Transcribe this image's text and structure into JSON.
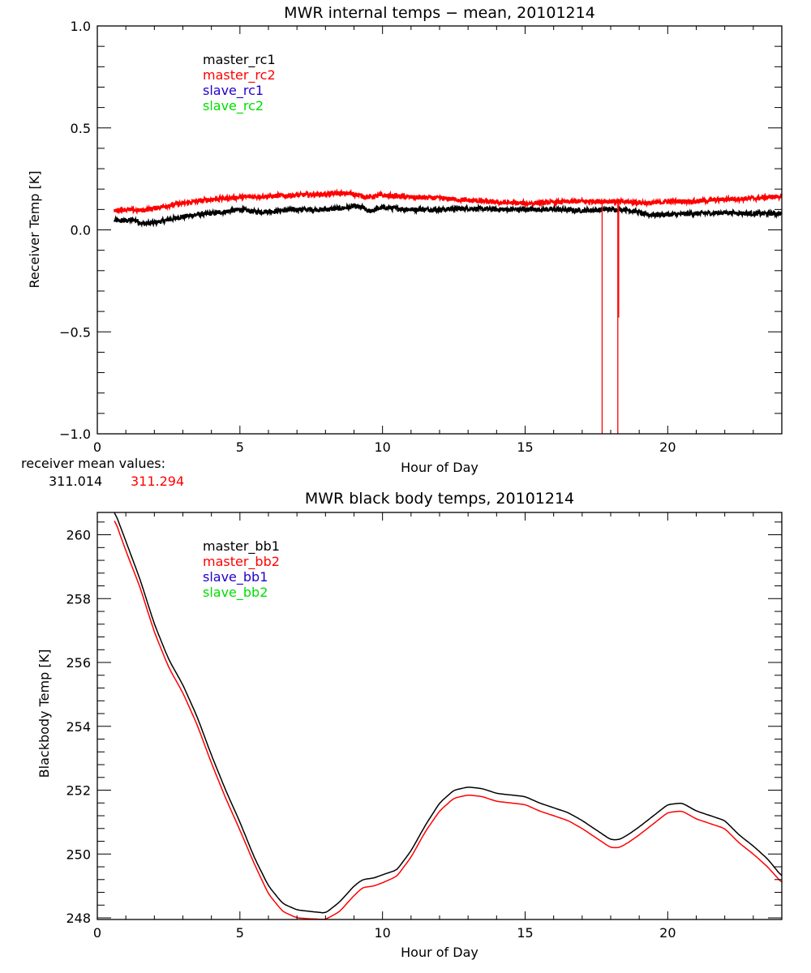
{
  "chart_data": [
    {
      "type": "line",
      "title": "MWR internal temps − mean, 20101214",
      "xlabel": "Hour of Day",
      "ylabel": "Receiver Temp [K]",
      "xlim": [
        0,
        24
      ],
      "ylim": [
        -1.0,
        1.0
      ],
      "xticks": [
        "0",
        "5",
        "10",
        "15",
        "20"
      ],
      "xtick_values": [
        0,
        5,
        10,
        15,
        20
      ],
      "yticks": [
        "−1.0",
        "−0.5",
        "0.0",
        "0.5",
        "1.0"
      ],
      "ytick_values": [
        -1.0,
        -0.5,
        0.0,
        0.5,
        1.0
      ],
      "grid": false,
      "legend_position": "top-left",
      "legend": [
        {
          "name": "master_rc1",
          "color": "#000000"
        },
        {
          "name": "master_rc2",
          "color": "#ff0000"
        },
        {
          "name": "slave_rc1",
          "color": "#2200cc"
        },
        {
          "name": "slave_rc2",
          "color": "#00dd00"
        }
      ],
      "series": [
        {
          "name": "master_rc1",
          "color": "#000000",
          "noisy": true,
          "x": [
            0.6,
            1.0,
            1.3,
            1.6,
            2.0,
            2.5,
            3.0,
            3.5,
            4.0,
            4.5,
            5.0,
            5.5,
            6.0,
            7.0,
            8.0,
            8.5,
            9.0,
            9.3,
            9.5,
            10.0,
            10.5,
            11.0,
            12.0,
            13.0,
            14.0,
            15.0,
            16.0,
            17.0,
            18.0,
            18.5,
            18.9,
            19.2,
            20.0,
            21.0,
            22.0,
            23.0,
            24.0
          ],
          "y": [
            0.045,
            0.045,
            0.05,
            0.03,
            0.035,
            0.05,
            0.065,
            0.075,
            0.08,
            0.09,
            0.1,
            0.09,
            0.09,
            0.1,
            0.1,
            0.105,
            0.115,
            0.11,
            0.09,
            0.11,
            0.105,
            0.1,
            0.1,
            0.105,
            0.1,
            0.1,
            0.1,
            0.095,
            0.1,
            0.1,
            0.09,
            0.075,
            0.075,
            0.08,
            0.085,
            0.08,
            0.08
          ]
        },
        {
          "name": "master_rc2",
          "color": "#ff0000",
          "noisy": true,
          "x": [
            0.6,
            1.0,
            1.5,
            2.0,
            2.5,
            3.0,
            3.5,
            4.0,
            4.5,
            5.0,
            6.0,
            7.0,
            8.0,
            8.5,
            9.0,
            9.5,
            10.0,
            11.0,
            12.0,
            13.0,
            14.0,
            15.0,
            16.0,
            17.0,
            18.0,
            19.0,
            19.5,
            20.0,
            21.0,
            22.0,
            23.0,
            24.0
          ],
          "y": [
            0.095,
            0.1,
            0.095,
            0.105,
            0.12,
            0.13,
            0.14,
            0.15,
            0.155,
            0.16,
            0.165,
            0.17,
            0.175,
            0.18,
            0.175,
            0.16,
            0.17,
            0.16,
            0.155,
            0.145,
            0.135,
            0.13,
            0.135,
            0.14,
            0.14,
            0.135,
            0.13,
            0.14,
            0.14,
            0.15,
            0.155,
            0.165
          ]
        }
      ],
      "spikes": [
        {
          "series": "master_rc2",
          "x": 17.7,
          "y_min": -1.0,
          "y_max": 0.14
        },
        {
          "series": "master_rc2",
          "x": 18.25,
          "y_min": -1.0,
          "y_max": 0.14
        },
        {
          "series": "master_rc2",
          "x": 18.28,
          "y_min": -0.43,
          "y_max": 0.14
        }
      ],
      "annotation": {
        "label": "receiver mean values:",
        "values": [
          {
            "text": "311.014",
            "color": "#000000"
          },
          {
            "text": "311.294",
            "color": "#ff0000"
          }
        ]
      }
    },
    {
      "type": "line",
      "title": "MWR black body temps, 20101214",
      "xlabel": "Hour of Day",
      "ylabel": "Blackbody Temp [K]",
      "xlim": [
        0,
        24
      ],
      "ylim": [
        247.95,
        260.7
      ],
      "xticks": [
        "0",
        "5",
        "10",
        "15",
        "20"
      ],
      "xtick_values": [
        0,
        5,
        10,
        15,
        20
      ],
      "yticks": [
        "248",
        "250",
        "252",
        "254",
        "256",
        "258",
        "260"
      ],
      "ytick_values": [
        248,
        250,
        252,
        254,
        256,
        258,
        260
      ],
      "grid": false,
      "legend_position": "top-left",
      "legend": [
        {
          "name": "master_bb1",
          "color": "#000000"
        },
        {
          "name": "master_bb2",
          "color": "#ff0000"
        },
        {
          "name": "slave_bb1",
          "color": "#2200cc"
        },
        {
          "name": "slave_bb2",
          "color": "#00dd00"
        }
      ],
      "series": [
        {
          "name": "master_bb1",
          "color": "#000000",
          "x": [
            0.6,
            1.0,
            1.5,
            2.0,
            2.5,
            3.0,
            3.5,
            4.0,
            4.5,
            5.0,
            5.5,
            6.0,
            6.5,
            7.0,
            7.5,
            8.0,
            8.5,
            9.0,
            9.3,
            9.7,
            10.0,
            10.5,
            11.0,
            11.5,
            12.0,
            12.5,
            13.0,
            13.5,
            14.0,
            14.5,
            15.0,
            15.5,
            16.0,
            16.5,
            17.0,
            17.5,
            18.0,
            18.3,
            18.6,
            19.0,
            19.5,
            20.0,
            20.5,
            21.0,
            21.5,
            22.0,
            22.5,
            23.0,
            23.5,
            24.0
          ],
          "y": [
            260.75,
            259.8,
            258.6,
            257.2,
            256.1,
            255.3,
            254.3,
            253.1,
            252.0,
            251.0,
            249.9,
            249.0,
            248.45,
            248.25,
            248.2,
            248.15,
            248.5,
            249.0,
            249.2,
            249.25,
            249.35,
            249.5,
            250.1,
            250.9,
            251.6,
            252.0,
            252.1,
            252.05,
            251.9,
            251.85,
            251.8,
            251.6,
            251.45,
            251.3,
            251.05,
            250.75,
            250.45,
            250.45,
            250.6,
            250.85,
            251.2,
            251.55,
            251.6,
            251.35,
            251.2,
            251.05,
            250.6,
            250.25,
            249.85,
            249.3
          ]
        },
        {
          "name": "master_bb2",
          "color": "#ff0000",
          "x": [
            0.6,
            1.0,
            1.5,
            2.0,
            2.5,
            3.0,
            3.5,
            4.0,
            4.5,
            5.0,
            5.5,
            6.0,
            6.5,
            7.0,
            7.5,
            8.0,
            8.5,
            9.0,
            9.3,
            9.7,
            10.0,
            10.5,
            11.0,
            11.5,
            12.0,
            12.5,
            13.0,
            13.5,
            14.0,
            14.5,
            15.0,
            15.5,
            16.0,
            16.5,
            17.0,
            17.5,
            18.0,
            18.3,
            18.6,
            19.0,
            19.5,
            20.0,
            20.5,
            21.0,
            21.5,
            22.0,
            22.5,
            23.0,
            23.5,
            24.0
          ],
          "y": [
            260.5,
            259.5,
            258.35,
            256.95,
            255.85,
            255.05,
            254.05,
            252.85,
            251.75,
            250.75,
            249.7,
            248.75,
            248.2,
            248.0,
            247.97,
            247.95,
            248.2,
            248.7,
            248.95,
            249.0,
            249.1,
            249.3,
            249.9,
            250.7,
            251.35,
            251.75,
            251.85,
            251.8,
            251.65,
            251.6,
            251.55,
            251.35,
            251.2,
            251.05,
            250.8,
            250.5,
            250.2,
            250.2,
            250.35,
            250.6,
            250.95,
            251.3,
            251.35,
            251.1,
            250.95,
            250.8,
            250.35,
            250.0,
            249.6,
            249.1
          ]
        }
      ]
    }
  ]
}
